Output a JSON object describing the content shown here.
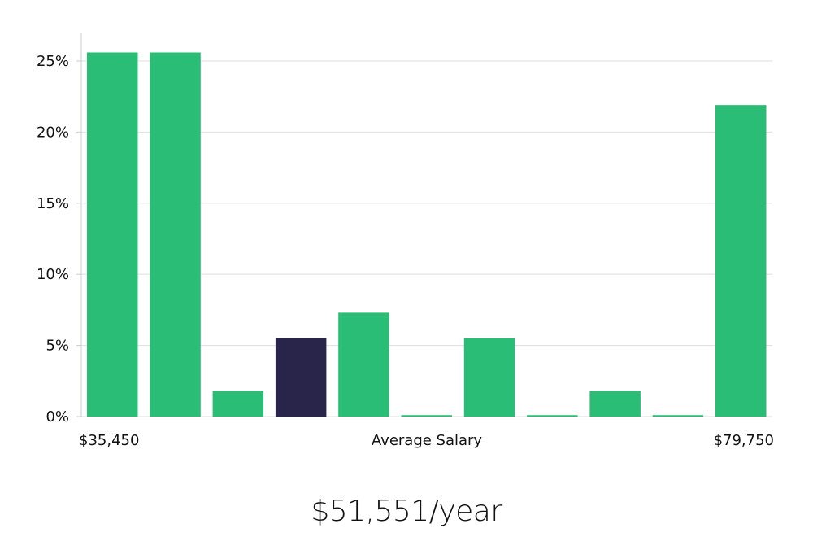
{
  "chart_data": {
    "type": "bar",
    "xlabel": "Average Salary",
    "x_min_label": "$35,450",
    "x_max_label": "$79,750",
    "ylim": [
      0,
      27
    ],
    "yticks": [
      0,
      5,
      10,
      15,
      20,
      25
    ],
    "ytick_suffix": "%",
    "grid": true,
    "values": [
      25.6,
      25.6,
      1.8,
      5.5,
      7.3,
      0.1,
      5.5,
      0.1,
      1.8,
      0.1,
      21.9
    ],
    "highlight_index": 3,
    "colors": {
      "bar": "#2abd75",
      "highlight": "#28244a",
      "grid": "#dedede",
      "axis": "#cccccc"
    }
  },
  "summary": {
    "salary": "$51,551/year"
  }
}
